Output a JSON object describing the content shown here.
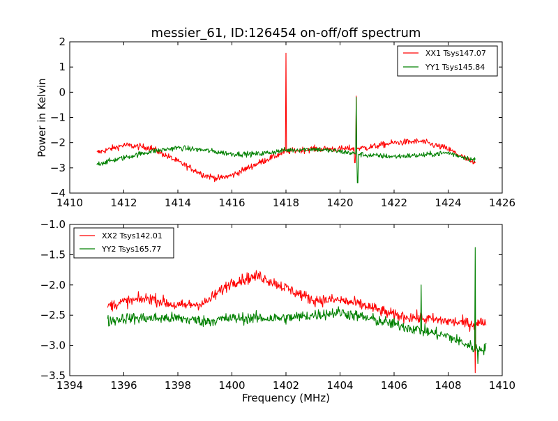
{
  "chart_data": [
    {
      "type": "line",
      "title": "messier_61, ID:126454 on-off/off spectrum",
      "xlabel": "",
      "ylabel": "Power in Kelvin",
      "xlim": [
        1410,
        1426
      ],
      "ylim": [
        -4,
        2
      ],
      "xticks": [
        1410,
        1412,
        1414,
        1416,
        1418,
        1420,
        1422,
        1424,
        1426
      ],
      "yticks": [
        2,
        1,
        0,
        -1,
        -2,
        -3,
        -4
      ],
      "legend_position": "top-right",
      "x_range": [
        1411,
        1425
      ],
      "series": [
        {
          "name": "XX1 Tsys147.07",
          "color": "#ff0000",
          "trend": [
            [
              1411,
              -2.4
            ],
            [
              1412,
              -2.1
            ],
            [
              1413,
              -2.2
            ],
            [
              1414,
              -2.75
            ],
            [
              1415,
              -3.3
            ],
            [
              1415.5,
              -3.42
            ],
            [
              1416,
              -3.3
            ],
            [
              1417,
              -2.8
            ],
            [
              1418,
              -2.35
            ],
            [
              1419,
              -2.25
            ],
            [
              1420,
              -2.25
            ],
            [
              1421,
              -2.2
            ],
            [
              1422,
              -2.0
            ],
            [
              1423,
              -1.95
            ],
            [
              1424,
              -2.25
            ],
            [
              1425,
              -2.85
            ]
          ],
          "noise": 0.12,
          "spikes": [
            [
              1418.0,
              1.55
            ],
            [
              1420.6,
              -0.15
            ],
            [
              1420.55,
              -2.8
            ]
          ]
        },
        {
          "name": "YY1 Tsys145.84",
          "color": "#008000",
          "trend": [
            [
              1411,
              -2.85
            ],
            [
              1412,
              -2.6
            ],
            [
              1413,
              -2.35
            ],
            [
              1414,
              -2.2
            ],
            [
              1415,
              -2.3
            ],
            [
              1416,
              -2.45
            ],
            [
              1417,
              -2.45
            ],
            [
              1418,
              -2.3
            ],
            [
              1419,
              -2.25
            ],
            [
              1420,
              -2.35
            ],
            [
              1421,
              -2.5
            ],
            [
              1422,
              -2.55
            ],
            [
              1423,
              -2.5
            ],
            [
              1424,
              -2.4
            ],
            [
              1425,
              -2.7
            ]
          ],
          "noise": 0.1,
          "spikes": [
            [
              1420.6,
              -0.2
            ],
            [
              1420.65,
              -3.6
            ]
          ]
        }
      ]
    },
    {
      "type": "line",
      "title": "",
      "xlabel": "Frequency (MHz)",
      "ylabel": "",
      "xlim": [
        1394,
        1410
      ],
      "ylim": [
        -3.5,
        -1.0
      ],
      "xticks": [
        1394,
        1396,
        1398,
        1400,
        1402,
        1404,
        1406,
        1408,
        1410
      ],
      "yticks": [
        -1.0,
        -1.5,
        -2.0,
        -2.5,
        -3.0,
        -3.5
      ],
      "legend_position": "top-left",
      "x_range": [
        1395.4,
        1409.4
      ],
      "series": [
        {
          "name": "XX2 Tsys142.01",
          "color": "#ff0000",
          "trend": [
            [
              1395.4,
              -2.35
            ],
            [
              1396,
              -2.28
            ],
            [
              1397,
              -2.22
            ],
            [
              1398,
              -2.35
            ],
            [
              1399,
              -2.3
            ],
            [
              1400,
              -1.95
            ],
            [
              1401,
              -1.85
            ],
            [
              1402,
              -2.05
            ],
            [
              1403,
              -2.25
            ],
            [
              1404,
              -2.25
            ],
            [
              1405,
              -2.35
            ],
            [
              1406,
              -2.5
            ],
            [
              1407,
              -2.55
            ],
            [
              1408,
              -2.6
            ],
            [
              1409,
              -2.65
            ],
            [
              1409.4,
              -2.6
            ]
          ],
          "noise": 0.09,
          "spikes": [
            [
              1409.0,
              -3.45
            ]
          ]
        },
        {
          "name": "YY2 Tsys165.77",
          "color": "#008000",
          "trend": [
            [
              1395.4,
              -2.6
            ],
            [
              1396,
              -2.55
            ],
            [
              1397,
              -2.55
            ],
            [
              1398,
              -2.55
            ],
            [
              1399,
              -2.6
            ],
            [
              1400,
              -2.55
            ],
            [
              1401,
              -2.55
            ],
            [
              1402,
              -2.55
            ],
            [
              1403,
              -2.5
            ],
            [
              1404,
              -2.45
            ],
            [
              1405,
              -2.55
            ],
            [
              1406,
              -2.65
            ],
            [
              1407,
              -2.75
            ],
            [
              1408,
              -2.85
            ],
            [
              1409,
              -3.05
            ],
            [
              1409.4,
              -3.05
            ]
          ],
          "noise": 0.09,
          "spikes": [
            [
              1407.0,
              -2.0
            ],
            [
              1409.0,
              -1.38
            ],
            [
              1409.1,
              -3.3
            ]
          ]
        }
      ]
    }
  ]
}
